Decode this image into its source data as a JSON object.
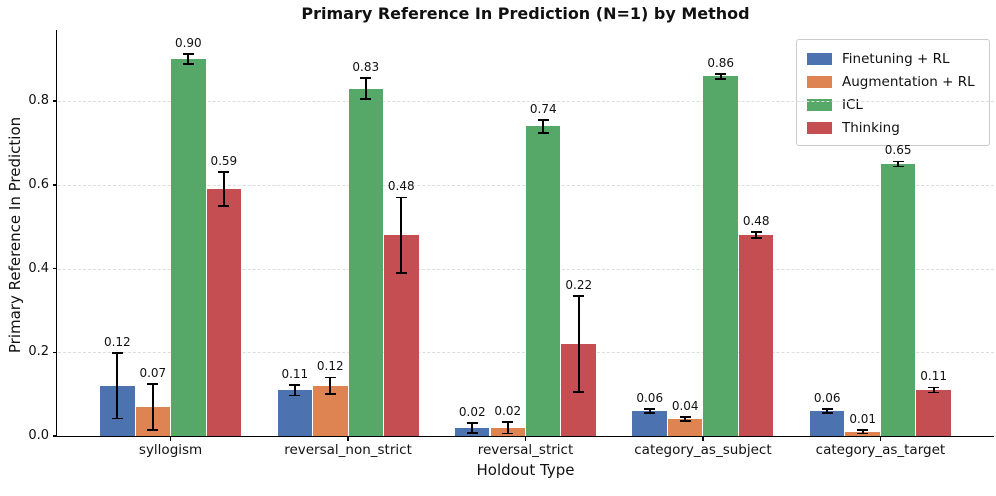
{
  "chart_data": {
    "type": "bar",
    "title": "Primary Reference In Prediction (N=1) by Method",
    "xlabel": "Holdout Type",
    "ylabel": "Primary Reference In Prediction",
    "ylim": [
      0,
      0.97
    ],
    "yticks": [
      0.0,
      0.2,
      0.4,
      0.6,
      0.8
    ],
    "grid": "horizontal-dashed",
    "legend_position": "upper-right",
    "categories": [
      "syllogism",
      "reversal_non_strict",
      "reversal_strict",
      "category_as_subject",
      "category_as_target"
    ],
    "series": [
      {
        "name": "Finetuning + RL",
        "color": "#4C72B0",
        "values": [
          0.12,
          0.11,
          0.02,
          0.06,
          0.06
        ],
        "errors": [
          0.078,
          0.013,
          0.012,
          0.005,
          0.005
        ]
      },
      {
        "name": "Augmentation + RL",
        "color": "#DD8452",
        "values": [
          0.07,
          0.12,
          0.02,
          0.04,
          0.01
        ],
        "errors": [
          0.055,
          0.02,
          0.014,
          0.005,
          0.004
        ]
      },
      {
        "name": "ICL",
        "color": "#55A868",
        "values": [
          0.9,
          0.83,
          0.74,
          0.86,
          0.65
        ],
        "errors": [
          0.012,
          0.025,
          0.015,
          0.006,
          0.006
        ]
      },
      {
        "name": "Thinking",
        "color": "#C44E52",
        "values": [
          0.59,
          0.48,
          0.22,
          0.48,
          0.11
        ],
        "errors": [
          0.04,
          0.09,
          0.115,
          0.007,
          0.006
        ]
      }
    ],
    "error_bar_color": "#000000",
    "axis_color": "#000000",
    "background_color": "#ffffff"
  }
}
